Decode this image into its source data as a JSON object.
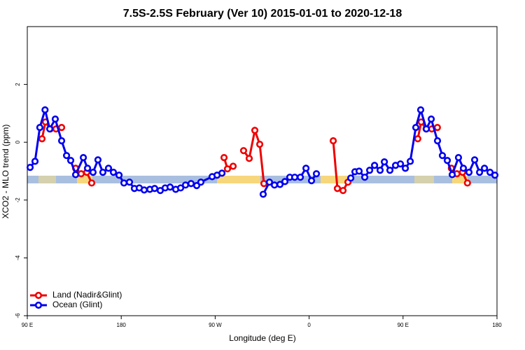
{
  "chart_data": {
    "type": "line",
    "title": "7.5S-2.5S February (Ver 10)   2015-01-01 to 2020-12-18",
    "x_label": "Longitude (deg E)",
    "y_label": "XCO2 - MLO trend (ppm)",
    "xlim": [
      90,
      540
    ],
    "ylim": [
      -6,
      4
    ],
    "xticks": [
      {
        "value": 90,
        "label": "90 E"
      },
      180,
      {
        "value": 270,
        "label": "90 W"
      },
      {
        "value": 360,
        "label": "0"
      },
      {
        "value": 450,
        "label": "90 E"
      },
      {
        "value": 540,
        "label": "180"
      }
    ],
    "yticks": [
      -6,
      -4,
      -2,
      0,
      2
    ],
    "legend": "bottom-left",
    "series": [
      {
        "name": "Land (Nadir&Glint)",
        "color": "#ee0000",
        "x": [
          104.1,
          107.4,
          112.1,
          117.5,
          122.9,
          null,
          136.3,
          141.6,
          147,
          151.7,
          null,
          278.5,
          281.8,
          287.2,
          null,
          297.2,
          302.6,
          308,
          312.7,
          316.7,
          null,
          383.1,
          387.1,
          392.5,
          397.2,
          null,
          464.1,
          467.4,
          472.1,
          477.5,
          482.9,
          null,
          496.3,
          501.6,
          507,
          511.7
        ],
        "values": [
          0.12,
          0.7,
          0.46,
          0.46,
          0.51,
          null,
          -0.9,
          -1.09,
          -1.04,
          -1.41,
          null,
          -0.53,
          -0.92,
          -0.83,
          null,
          -0.29,
          -0.56,
          0.41,
          -0.07,
          -1.43,
          null,
          0.05,
          -1.6,
          -1.67,
          -1.38,
          null,
          0.12,
          0.7,
          0.46,
          0.46,
          0.51,
          null,
          -0.9,
          -1.09,
          -1.04,
          -1.41
        ]
      },
      {
        "name": "Ocean (Glint)",
        "color": "#0000ee",
        "x": [
          92.7,
          97.4,
          102,
          107,
          111.5,
          116.8,
          122.9,
          127.6,
          131.6,
          136.3,
          143.7,
          147.7,
          153,
          157.7,
          162.4,
          167.8,
          172.5,
          177.9,
          182.6,
          187.9,
          192.6,
          197.3,
          202,
          207.4,
          212,
          217.4,
          222.1,
          226.8,
          232.2,
          236.9,
          241.6,
          246.9,
          252.3,
          256.3,
          267.1,
          271.8,
          276.5,
          null,
          316,
          322,
          326.8,
          332.1,
          336.8,
          341.5,
          346.2,
          351.6,
          357,
          362.3,
          367,
          null,
          399.9,
          403.9,
          407.9,
          413.3,
          418,
          422.7,
          428,
          432.1,
          437.4,
          442.8,
          447.5,
          452.2,
          456.9,
          462.2,
          466.9,
          472.3,
          477,
          483,
          487.7,
          492.4,
          497.1,
          503.1,
          507.8,
          513.2,
          518.6,
          523.3,
          528,
          533.3,
          538
        ],
        "values": [
          -0.87,
          -0.66,
          0.51,
          1.12,
          0.46,
          0.8,
          0.05,
          -0.46,
          -0.63,
          -1.12,
          -0.53,
          -0.9,
          -1.04,
          -0.61,
          -1.04,
          -0.9,
          -1.04,
          -1.14,
          -1.41,
          -1.38,
          -1.6,
          -1.58,
          -1.65,
          -1.63,
          -1.6,
          -1.67,
          -1.58,
          -1.55,
          -1.63,
          -1.58,
          -1.48,
          -1.43,
          -1.5,
          -1.38,
          -1.19,
          -1.14,
          -1.07,
          null,
          -1.8,
          -1.38,
          -1.48,
          -1.46,
          -1.36,
          -1.21,
          -1.21,
          -1.21,
          -0.9,
          -1.33,
          -1.09,
          null,
          -1.24,
          -1.02,
          -1.0,
          -1.21,
          -0.97,
          -0.8,
          -0.97,
          -0.68,
          -0.97,
          -0.8,
          -0.75,
          -0.9,
          -0.66,
          0.51,
          1.12,
          0.46,
          0.8,
          0.05,
          -0.46,
          -0.63,
          -1.12,
          -0.53,
          -0.9,
          -1.04,
          -0.61,
          -1.04,
          -0.9,
          -1.04,
          -1.14
        ]
      }
    ]
  }
}
